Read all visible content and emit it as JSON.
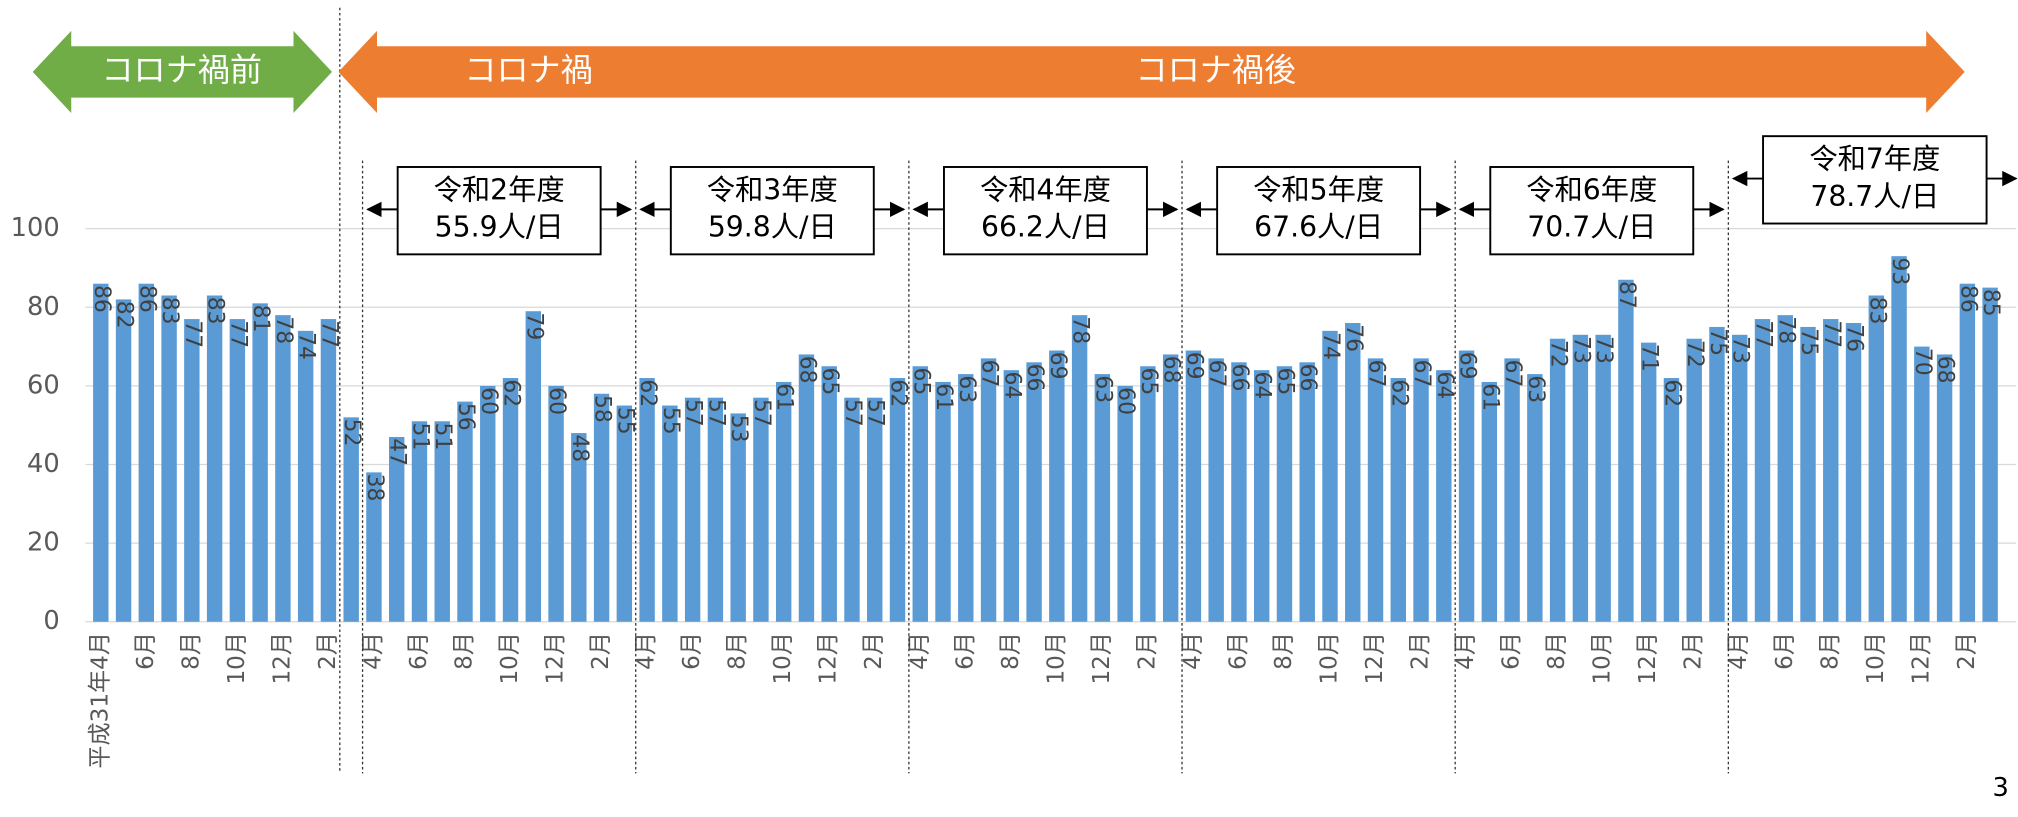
{
  "chart_data": {
    "type": "bar",
    "categories": [
      "平成31年4月",
      null,
      "6月",
      null,
      "8月",
      null,
      "10月",
      null,
      "12月",
      null,
      "2月",
      null,
      "4月",
      null,
      "6月",
      null,
      "8月",
      null,
      "10月",
      null,
      "12月",
      null,
      "2月",
      null,
      "4月",
      null,
      "6月",
      null,
      "8月",
      null,
      "10月",
      null,
      "12月",
      null,
      "2月",
      null,
      "4月",
      null,
      "6月",
      null,
      "8月",
      null,
      "10月",
      null,
      "12月",
      null,
      "2月",
      null,
      "4月",
      null,
      "6月",
      null,
      "8月",
      null,
      "10月",
      null,
      "12月",
      null,
      "2月",
      null,
      "4月",
      null,
      "6月",
      null,
      "8月",
      null,
      "10月",
      null,
      "12月",
      null,
      "2月",
      null,
      "4月",
      null,
      "6月",
      null,
      "8月",
      null,
      "10月",
      null,
      "12月",
      null,
      "2月",
      null
    ],
    "values": [
      86,
      82,
      86,
      83,
      77,
      83,
      77,
      81,
      78,
      74,
      77,
      52,
      38,
      47,
      51,
      51,
      56,
      60,
      62,
      79,
      60,
      48,
      58,
      55,
      62,
      55,
      57,
      57,
      53,
      57,
      61,
      68,
      65,
      57,
      57,
      62,
      65,
      61,
      63,
      67,
      64,
      66,
      69,
      78,
      63,
      60,
      65,
      68,
      69,
      67,
      66,
      64,
      65,
      66,
      74,
      76,
      67,
      62,
      67,
      64,
      69,
      61,
      67,
      63,
      72,
      73,
      73,
      87,
      71,
      62,
      72,
      75,
      73,
      77,
      78,
      75,
      77,
      76,
      83,
      93,
      70,
      68,
      86,
      85
    ],
    "color": "#5b9bd5",
    "ylim": [
      0,
      100
    ],
    "yticks": [
      0,
      20,
      40,
      60,
      80,
      100
    ],
    "grid": true,
    "periods": [
      {
        "label": "コロナ禍前",
        "color": "#70ad47"
      },
      {
        "label": "コロナ禍",
        "color": "#ed7d31"
      },
      {
        "label": "コロナ禍後",
        "color": "#ed7d31"
      }
    ],
    "years": [
      {
        "label": "令和2年度",
        "average": "55.9人/日"
      },
      {
        "label": "令和3年度",
        "average": "59.8人/日"
      },
      {
        "label": "令和4年度",
        "average": "66.2人/日"
      },
      {
        "label": "令和5年度",
        "average": "67.6人/日"
      },
      {
        "label": "令和6年度",
        "average": "70.7人/日"
      },
      {
        "label": "令和7年度",
        "average": "78.7人/日"
      }
    ],
    "page_number": "3"
  }
}
